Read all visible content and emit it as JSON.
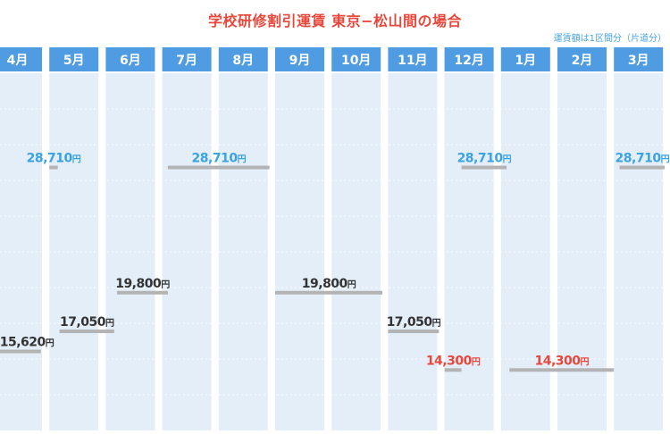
{
  "title": "学校研修割引運賃 東京−松山間の場合",
  "note": "運賃額は1区間分（片道分）",
  "chart_data": {
    "type": "bar",
    "title": "学校研修割引運賃 東京−松山間の場合",
    "categories": [
      "4月",
      "5月",
      "6月",
      "7月",
      "8月",
      "9月",
      "10月",
      "11月",
      "12月",
      "1月",
      "2月",
      "3月"
    ],
    "unit": "円",
    "ylim": [
      10000,
      33000
    ],
    "grid": true,
    "periods": [
      {
        "value": 15620,
        "label": "15,620",
        "color": "#333333",
        "start": 0.0,
        "end": 0.85
      },
      {
        "value": 28710,
        "label": "28,710",
        "color": "#3ba3df",
        "start": 1.0,
        "end": 1.15
      },
      {
        "value": 17050,
        "label": "17,050",
        "color": "#333333",
        "start": 1.18,
        "end": 2.15
      },
      {
        "value": 19800,
        "label": "19,800",
        "color": "#333333",
        "start": 2.2,
        "end": 3.1
      },
      {
        "value": 28710,
        "label": "28,710",
        "color": "#3ba3df",
        "start": 3.1,
        "end": 4.9
      },
      {
        "value": 19800,
        "label": "19,800",
        "color": "#333333",
        "start": 5.0,
        "end": 6.9
      },
      {
        "value": 17050,
        "label": "17,050",
        "color": "#333333",
        "start": 7.0,
        "end": 7.9
      },
      {
        "value": 14300,
        "label": "14,300",
        "color": "#e8473b",
        "start": 8.0,
        "end": 8.3
      },
      {
        "value": 28710,
        "label": "28,710",
        "color": "#3ba3df",
        "start": 8.3,
        "end": 9.1
      },
      {
        "value": 14300,
        "label": "14,300",
        "color": "#e8473b",
        "start": 9.15,
        "end": 11.0
      },
      {
        "value": 28710,
        "label": "28,710",
        "color": "#3ba3df",
        "start": 11.1,
        "end": 11.9
      }
    ]
  }
}
